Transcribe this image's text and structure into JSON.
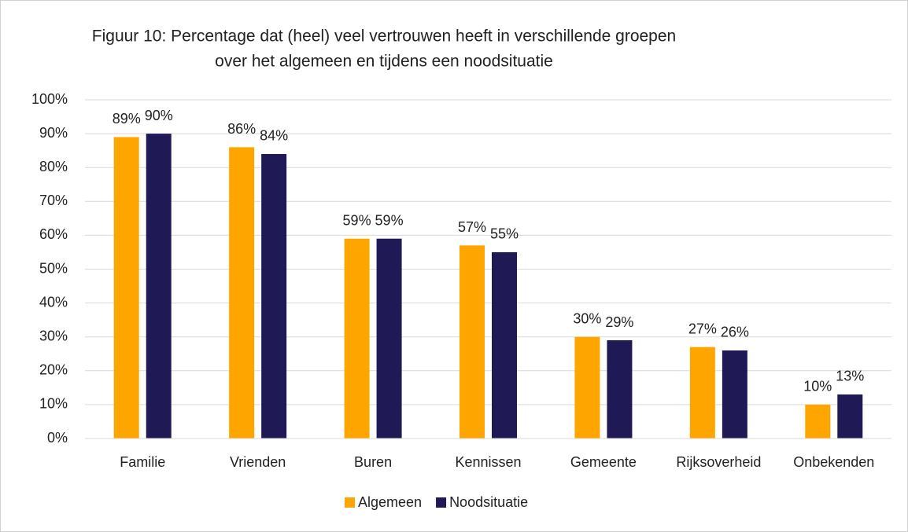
{
  "chart_data": {
    "type": "bar",
    "title": [
      "Figuur 10: Percentage dat (heel) veel vertrouwen heeft in verschillende groepen",
      "over het algemeen en tijdens een noodsituatie"
    ],
    "categories": [
      "Familie",
      "Vrienden",
      "Buren",
      "Kennissen",
      "Gemeente",
      "Rijksoverheid",
      "Onbekenden"
    ],
    "series": [
      {
        "name": "Algemeen",
        "color": "#ffa500",
        "values": [
          89,
          86,
          59,
          57,
          30,
          27,
          10
        ],
        "value_labels": [
          "89%",
          "86%",
          "59%",
          "57%",
          "30%",
          "27%",
          "10%"
        ]
      },
      {
        "name": "Noodsituatie",
        "color": "#1f1a55",
        "values": [
          90,
          84,
          59,
          55,
          29,
          26,
          13
        ],
        "value_labels": [
          "90%",
          "84%",
          "59%",
          "55%",
          "29%",
          "26%",
          "13%"
        ]
      }
    ],
    "ylim": [
      0,
      100
    ],
    "yticks": [
      {
        "value": 0,
        "label": "0%"
      },
      {
        "value": 10,
        "label": "10%"
      },
      {
        "value": 20,
        "label": "20%"
      },
      {
        "value": 30,
        "label": "30%"
      },
      {
        "value": 40,
        "label": "40%"
      },
      {
        "value": 50,
        "label": "50%"
      },
      {
        "value": 60,
        "label": "60%"
      },
      {
        "value": 70,
        "label": "70%"
      },
      {
        "value": 80,
        "label": "80%"
      },
      {
        "value": 90,
        "label": "90%"
      },
      {
        "value": 100,
        "label": "100%"
      }
    ],
    "grid": true,
    "legend": "bottom"
  }
}
